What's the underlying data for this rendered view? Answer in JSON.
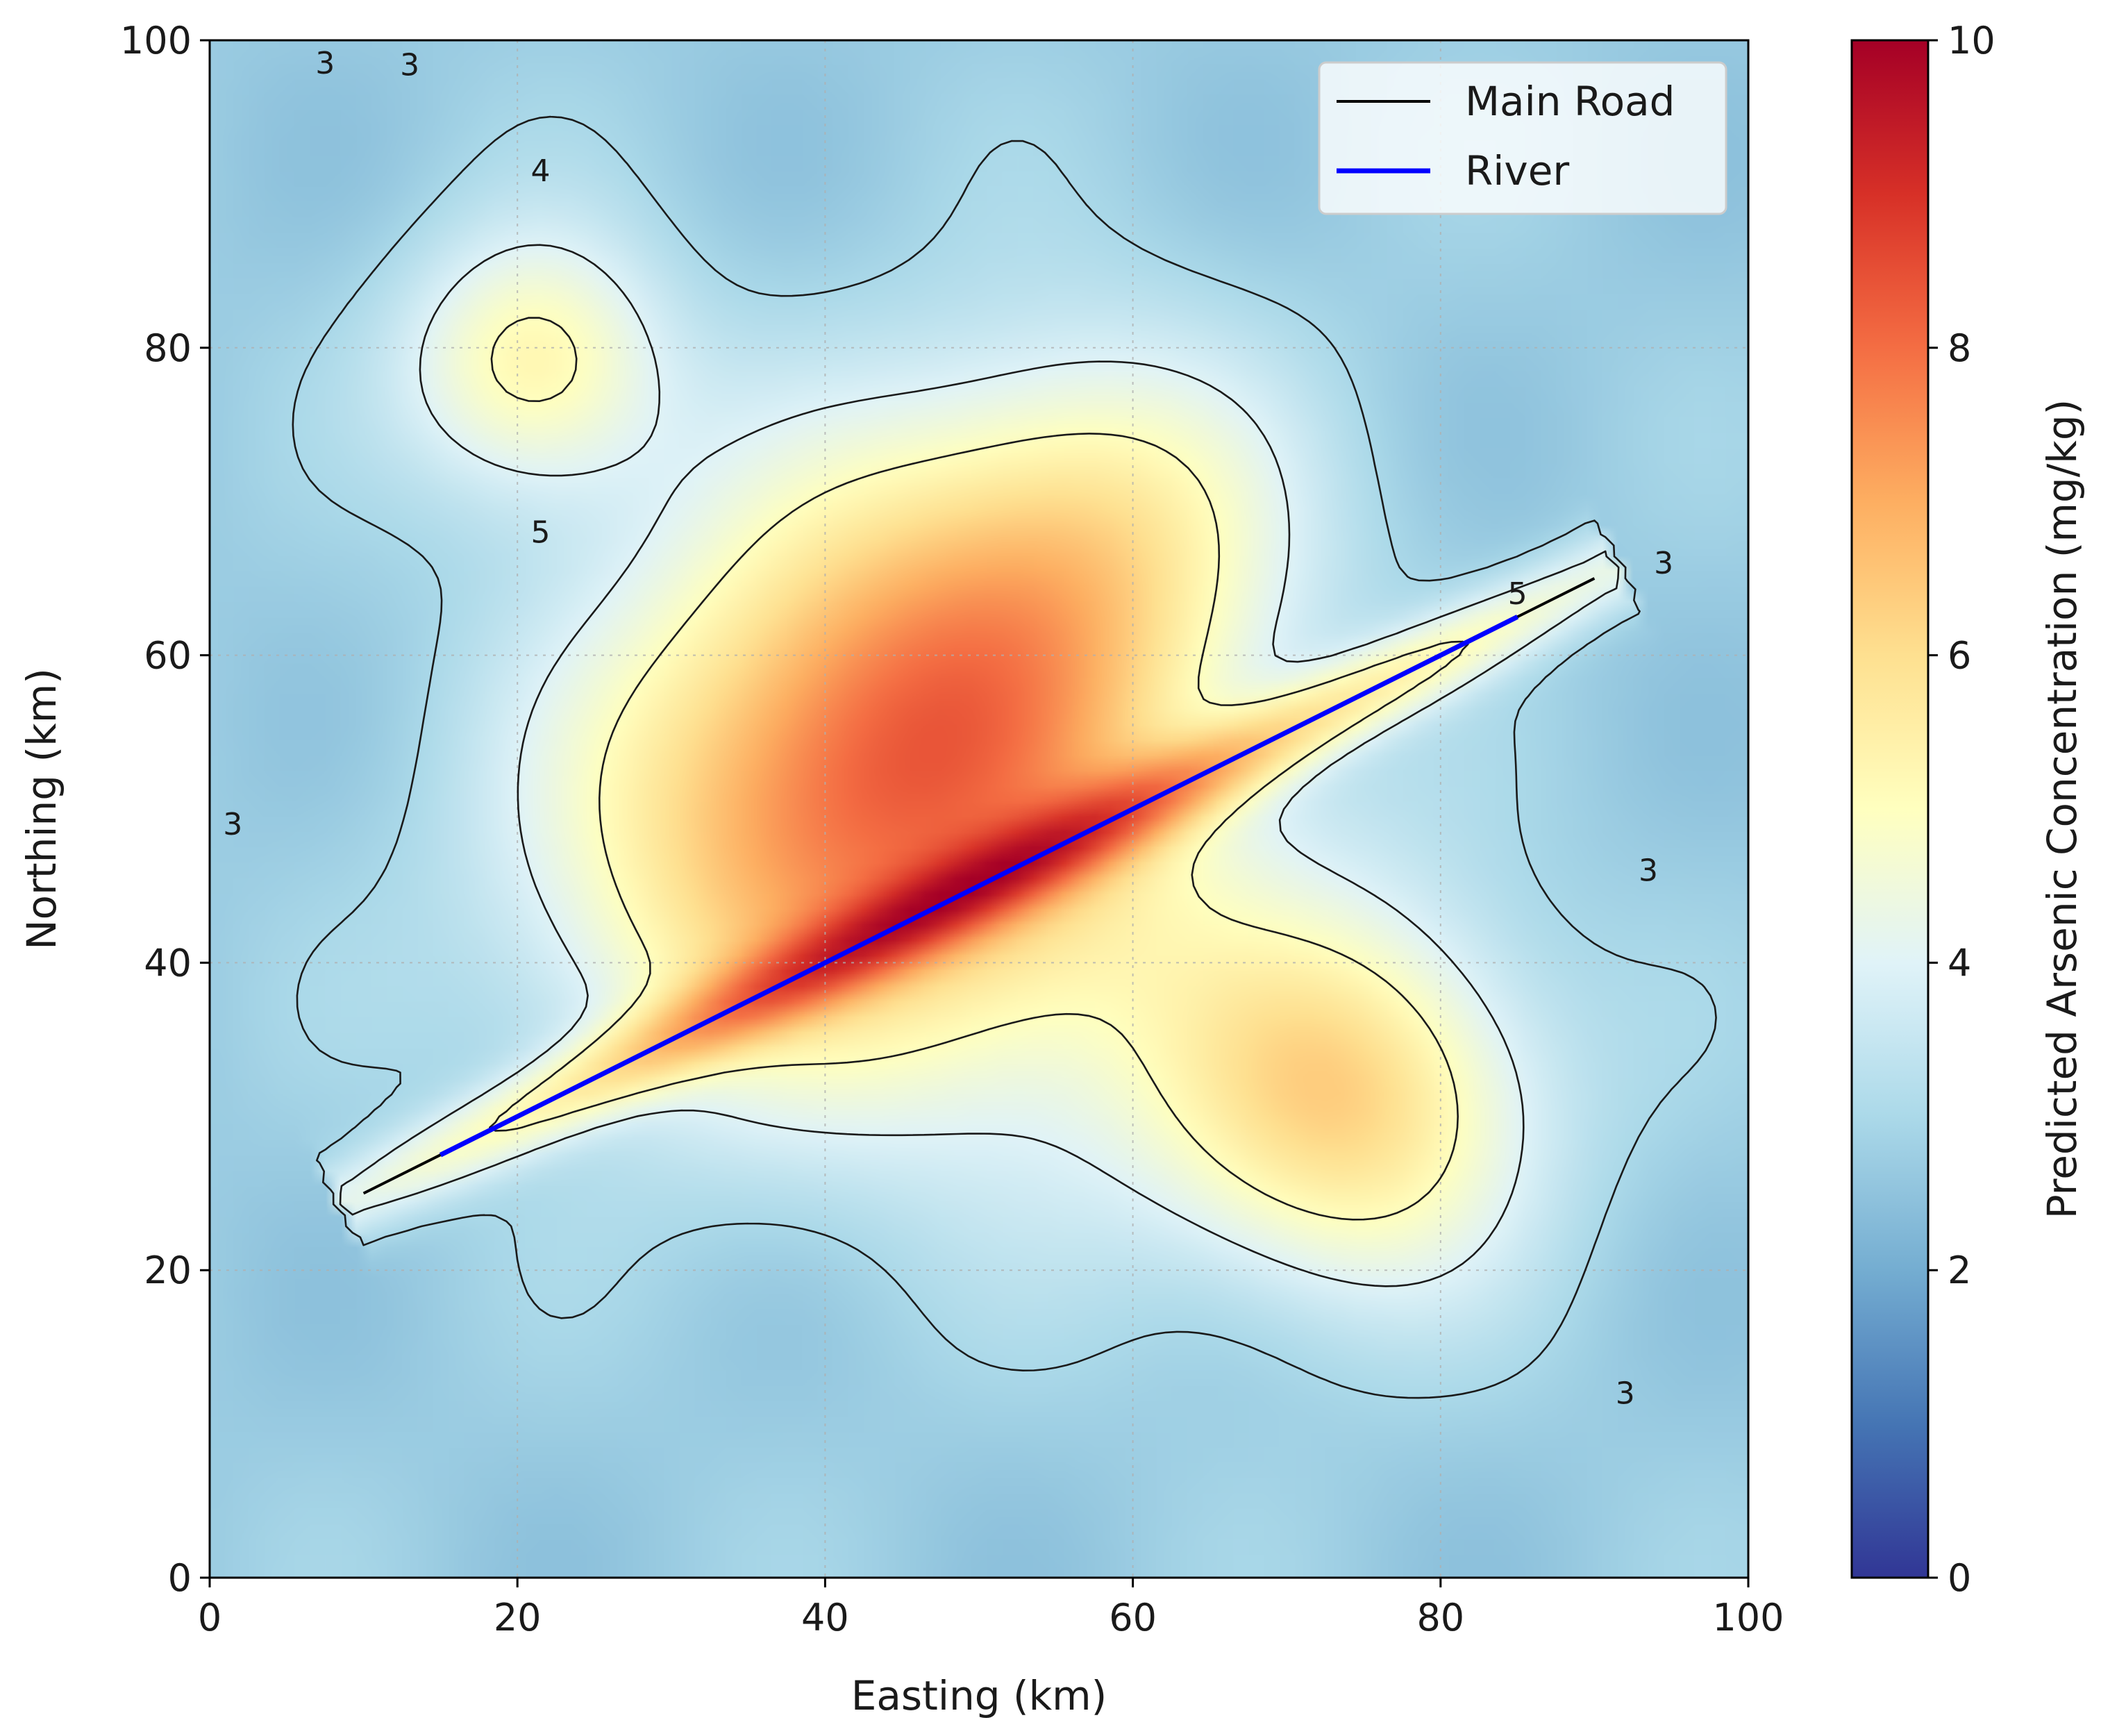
{
  "chart_data": {
    "type": "heatmap",
    "title": "",
    "xlabel": "Easting (km)",
    "ylabel": "Northing (km)",
    "xlim": [
      0,
      100
    ],
    "ylim": [
      0,
      100
    ],
    "x_ticks": [
      0,
      20,
      40,
      60,
      80,
      100
    ],
    "y_ticks": [
      0,
      20,
      40,
      60,
      80,
      100
    ],
    "grid": true,
    "colorbar": {
      "label": "Predicted Arsenic Concentration (mg/kg)",
      "range": [
        0,
        10
      ],
      "ticks": [
        0,
        2,
        4,
        6,
        8,
        10
      ],
      "colormap": "RdYlBu_r"
    },
    "hotspots": [
      {
        "x": 45,
        "y": 55,
        "peak": 8.4
      },
      {
        "x": 58,
        "y": 68,
        "peak": 7.2
      },
      {
        "x": 21,
        "y": 79,
        "peak": 6.0
      },
      {
        "x": 74,
        "y": 31,
        "peak": 6.3
      }
    ],
    "background_level": 2.7,
    "river_corridor": {
      "from": [
        10,
        25
      ],
      "to": [
        90,
        65
      ],
      "peak_mid": 8.0
    },
    "contour_levels": [
      3,
      4,
      5
    ],
    "contour_labels": [
      "3",
      "3",
      "4",
      "5",
      "3",
      "3",
      "3",
      "3",
      "5"
    ],
    "legend": {
      "position": "top-right",
      "entries": [
        {
          "label": "Main Road",
          "color": "#000000"
        },
        {
          "label": "River",
          "color": "#0000ff"
        }
      ]
    },
    "series": [
      {
        "name": "Main Road",
        "x": [
          10,
          90
        ],
        "y": [
          25,
          65
        ],
        "color": "#000000"
      },
      {
        "name": "River",
        "x": [
          15,
          85
        ],
        "y": [
          27.5,
          62.5
        ],
        "color": "#0000ff"
      }
    ]
  }
}
